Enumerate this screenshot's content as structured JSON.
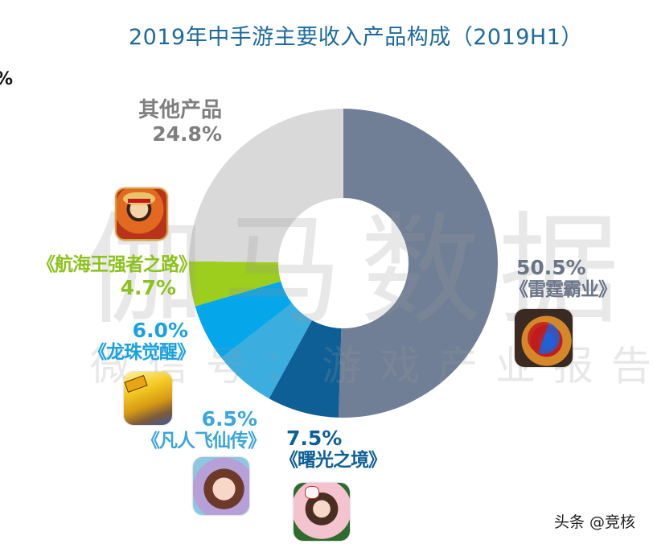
{
  "header": {
    "title": "2019年中手游主要收入产品构成（2019H1）"
  },
  "edge_fragment": "%",
  "watermark": {
    "main": "伽马数据",
    "sub": "微信号：游戏产业报告"
  },
  "footer": {
    "credit": "头条 @竞核"
  },
  "labels": {
    "leiting": {
      "pct": "50.5%",
      "name": "《雷霆霸业》"
    },
    "shuguang": {
      "pct": "7.5%",
      "name": "《曙光之境》"
    },
    "fanren": {
      "pct": "6.5%",
      "name": "《凡人飞仙传》"
    },
    "longzhu": {
      "pct": "6.0%",
      "name": "《龙珠觉醒》"
    },
    "hanghai": {
      "pct": "4.7%",
      "name": "《航海王强者之路》"
    },
    "other": {
      "pct": "24.8%",
      "name": "其他产品"
    }
  },
  "chart_data": {
    "type": "pie",
    "subtype": "donut",
    "title": "2019年中手游主要收入产品构成（2019H1）",
    "categories": [
      "《雷霆霸业》",
      "《曙光之境》",
      "《凡人飞仙传》",
      "《龙珠觉醒》",
      "《航海王强者之路》",
      "其他产品"
    ],
    "values": [
      50.5,
      7.5,
      6.5,
      6.0,
      4.7,
      24.8
    ],
    "unit": "%",
    "colors": [
      "#717f96",
      "#0e5f96",
      "#3badde",
      "#05a6ea",
      "#9dcd1d",
      "#d9d9d9"
    ],
    "label_colors": [
      "#6b7588",
      "#0e5f96",
      "#3aa6da",
      "#1aa2e0",
      "#8cc21c",
      "#7f7f7f"
    ],
    "start_angle_deg": 0,
    "direction": "clockwise",
    "center": [
      427,
      327
    ],
    "outer_radius": 192,
    "inner_radius": 81,
    "legend": "none (direct labels with game icons)"
  }
}
